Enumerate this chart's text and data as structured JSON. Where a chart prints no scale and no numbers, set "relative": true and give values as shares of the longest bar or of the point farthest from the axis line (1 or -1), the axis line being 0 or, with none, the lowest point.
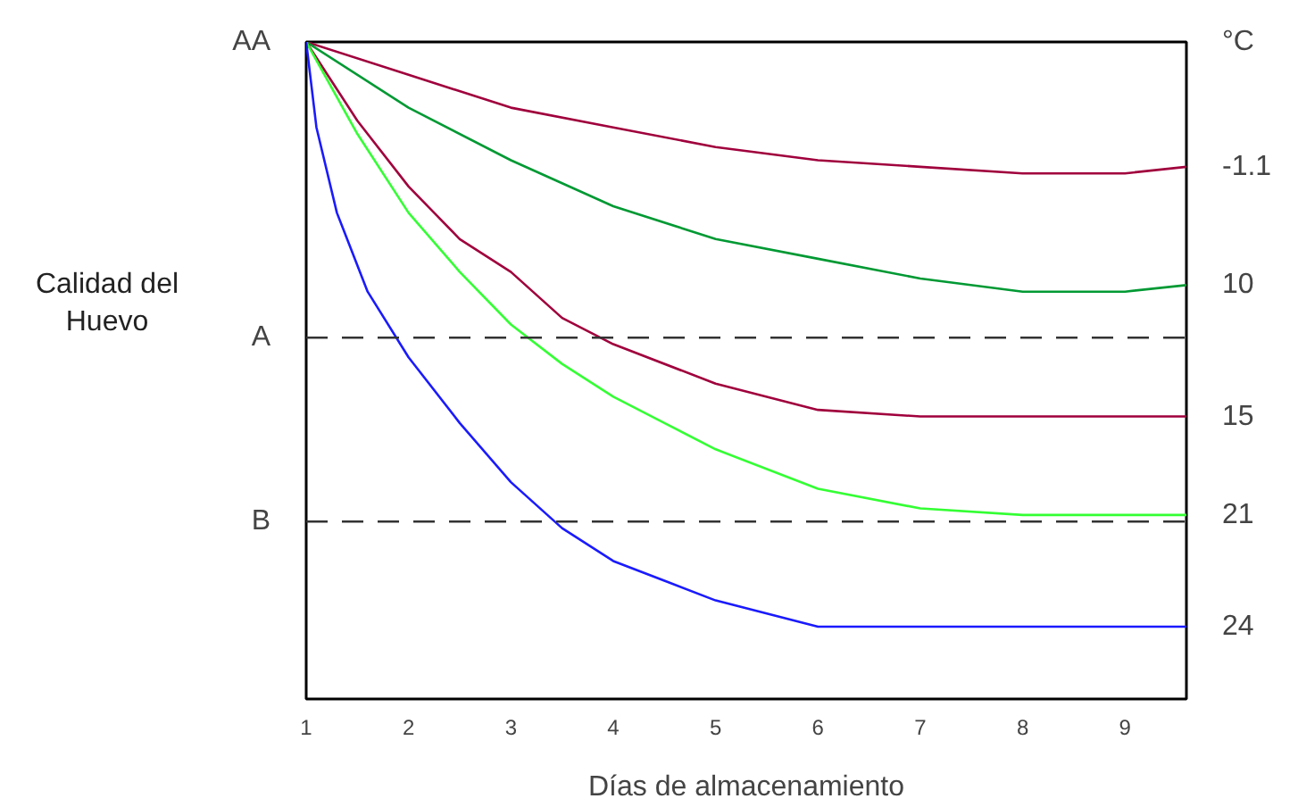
{
  "chart_data": {
    "type": "line",
    "relative": true,
    "xlabel": "Días de almacenamiento",
    "ylabel": "Calidad del\nHuevo",
    "legend_title": "°C",
    "xlim": [
      1,
      9.6
    ],
    "xticks": [
      1,
      2,
      3,
      4,
      5,
      6,
      7,
      8,
      9
    ],
    "grid": false,
    "legend": false,
    "line_style": "solid",
    "series": [
      {
        "name": "-1.1",
        "color": "#a0003c",
        "x": [
          1,
          2,
          3,
          4,
          5,
          6,
          7,
          8,
          9,
          9.6
        ],
        "values": [
          1,
          0.95,
          0.9,
          0.87,
          0.84,
          0.82,
          0.81,
          0.8,
          0.8,
          0.81
        ]
      },
      {
        "name": "10",
        "color": "#009933",
        "x": [
          1,
          2,
          3,
          4,
          5,
          6,
          7,
          8,
          9,
          9.6
        ],
        "values": [
          1,
          0.9,
          0.82,
          0.75,
          0.7,
          0.67,
          0.64,
          0.62,
          0.62,
          0.63
        ]
      },
      {
        "name": "15",
        "color": "#a0003c",
        "x": [
          1,
          1.5,
          2,
          2.5,
          3,
          3.5,
          4,
          5,
          6,
          7,
          8,
          9,
          9.6
        ],
        "values": [
          1,
          0.88,
          0.78,
          0.7,
          0.65,
          0.58,
          0.54,
          0.48,
          0.44,
          0.43,
          0.43,
          0.43,
          0.43
        ]
      },
      {
        "name": "21",
        "color": "#33ff33",
        "x": [
          1,
          1.5,
          2,
          2.5,
          3,
          3.5,
          4,
          4.5,
          5,
          6,
          7,
          8,
          9,
          9.6
        ],
        "values": [
          1,
          0.86,
          0.74,
          0.65,
          0.57,
          0.51,
          0.46,
          0.42,
          0.38,
          0.32,
          0.29,
          0.28,
          0.28,
          0.28
        ]
      },
      {
        "name": "24",
        "color": "#1a1aff",
        "x": [
          1,
          1.1,
          1.3,
          1.6,
          2,
          2.5,
          3,
          3.5,
          4,
          4.5,
          5,
          6,
          7,
          8,
          9,
          9.6
        ],
        "values": [
          1,
          0.87,
          0.74,
          0.62,
          0.52,
          0.42,
          0.33,
          0.26,
          0.21,
          0.18,
          0.15,
          0.11,
          0.11,
          0.11,
          0.11,
          0.11
        ]
      }
    ],
    "ref_lines": [
      {
        "axis": "y",
        "value": 0.55,
        "label": "A",
        "color": "#333333",
        "line_style": "dashed"
      },
      {
        "axis": "y",
        "value": 0.27,
        "label": "B",
        "color": "#333333",
        "line_style": "dashed"
      }
    ],
    "annotations": [
      "AA"
    ]
  }
}
